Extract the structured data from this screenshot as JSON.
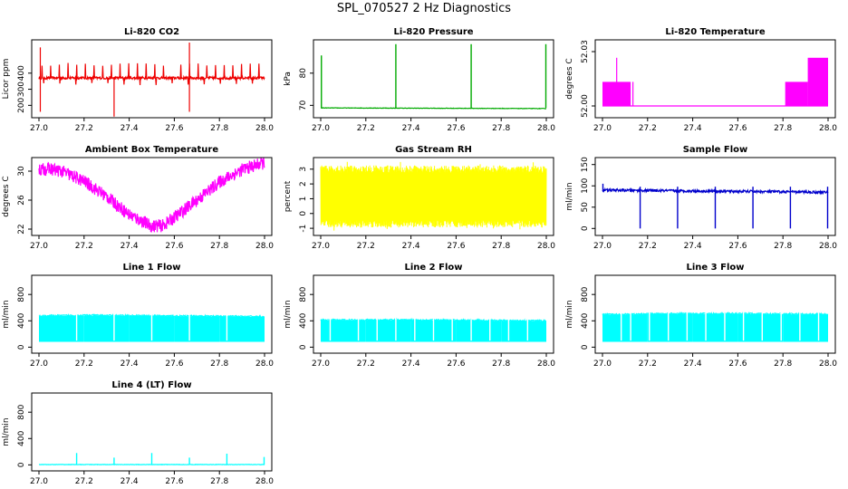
{
  "page_title": "SPL_070527  2 Hz Diagnostics",
  "chart_data": [
    {
      "type": "line",
      "title": "Li-820 CO2",
      "ylabel": "Licor ppm",
      "color": "#ee0000",
      "xlim": [
        27.0,
        28.0
      ],
      "ylim": [
        140,
        590
      ],
      "yticks": [
        "200",
        "300",
        "400"
      ],
      "xticks": [
        "27.0",
        "27.2",
        "27.4",
        "27.6",
        "27.8",
        "28.0"
      ],
      "series": [
        {
          "x": [
            27.0,
            28.0
          ],
          "values": [
            370,
            370
          ]
        }
      ],
      "pattern": {
        "kind": "noise_spikes",
        "base": 370,
        "noise": 8,
        "spike_hi": 465,
        "spike_lo": 325,
        "big": [
          {
            "x": 27.006,
            "lo": 160,
            "hi": 560
          },
          {
            "x": 27.333,
            "lo": 130,
            "hi": 370
          },
          {
            "x": 27.667,
            "lo": 160,
            "hi": 590
          }
        ]
      }
    },
    {
      "type": "line",
      "title": "Li-820 Pressure",
      "ylabel": "kPa",
      "color": "#00aa00",
      "xlim": [
        27.0,
        28.0
      ],
      "ylim": [
        67,
        89.5
      ],
      "yticks": [
        "70",
        "80"
      ],
      "xticks": [
        "27.0",
        "27.2",
        "27.4",
        "27.6",
        "27.8",
        "28.0"
      ],
      "series": [
        {
          "x": [
            27.0,
            28.0
          ],
          "values": [
            69.2,
            69.0
          ]
        }
      ],
      "pattern": {
        "kind": "flat_spikes",
        "base": 69.2,
        "spikes": [
          {
            "x": 27.003,
            "top": 85.5
          },
          {
            "x": 27.333,
            "top": 89
          },
          {
            "x": 27.667,
            "top": 89
          },
          {
            "x": 27.998,
            "top": 89
          }
        ]
      }
    },
    {
      "type": "line",
      "title": "Li-820 Temperature",
      "ylabel": "degrees C",
      "color": "#ff00ff",
      "xlim": [
        27.0,
        28.0
      ],
      "ylim": [
        51.995,
        52.035
      ],
      "yticks": [
        "52.00",
        "52.03"
      ],
      "xticks": [
        "27.0",
        "27.2",
        "27.4",
        "27.6",
        "27.8",
        "28.0"
      ],
      "series": [
        {
          "x": [
            27.0,
            28.0
          ],
          "values": [
            52.0,
            52.0
          ]
        }
      ],
      "pattern": {
        "kind": "steps",
        "base": 52.0,
        "blocks": [
          {
            "x0": 27.0,
            "x1": 27.125,
            "top": 52.0133
          },
          {
            "x0": 27.81,
            "x1": 27.91,
            "top": 52.0133
          },
          {
            "x0": 27.91,
            "x1": 28.0,
            "top": 52.0266
          }
        ],
        "lines": [
          {
            "x": 27.063,
            "top": 52.0266
          },
          {
            "x": 27.135,
            "top": 52.0133
          }
        ]
      }
    },
    {
      "type": "line",
      "title": "Ambient Box Temperature",
      "ylabel": "degrees C",
      "color": "#ff00ff",
      "xlim": [
        27.0,
        28.0
      ],
      "ylim": [
        21.5,
        31.5
      ],
      "yticks": [
        "22",
        "26",
        "30"
      ],
      "xticks": [
        "27.0",
        "27.2",
        "27.4",
        "27.6",
        "27.8",
        "28.0"
      ],
      "series": [
        {
          "x": [
            27.0,
            27.05,
            27.1,
            27.2,
            27.3,
            27.4,
            27.5,
            27.55,
            27.6,
            27.7,
            27.8,
            27.9,
            28.0
          ],
          "values": [
            30.2,
            30.3,
            30.0,
            28.6,
            26.5,
            24.0,
            22.4,
            22.5,
            23.6,
            26.0,
            28.5,
            30.2,
            31.2
          ]
        }
      ],
      "pattern": {
        "kind": "band",
        "width": 0.9
      }
    },
    {
      "type": "line",
      "title": "Gas Stream RH",
      "ylabel": "percent",
      "color": "#ffff00",
      "xlim": [
        27.0,
        28.0
      ],
      "ylim": [
        -1.3,
        3.6
      ],
      "yticks": [
        "-1",
        "0",
        "1",
        "2",
        "3"
      ],
      "xticks": [
        "27.0",
        "27.2",
        "27.4",
        "27.6",
        "27.8",
        "28.0"
      ],
      "series": [
        {
          "x": [
            27.0,
            28.0
          ],
          "values": [
            1.0,
            1.0
          ]
        }
      ],
      "pattern": {
        "kind": "dense_noise",
        "lo": -0.7,
        "hi": 3.0,
        "outer_lo": -1.1,
        "outer_hi": 3.3
      }
    },
    {
      "type": "line",
      "title": "Sample Flow",
      "ylabel": "ml/min",
      "color": "#0000cc",
      "xlim": [
        27.0,
        28.0
      ],
      "ylim": [
        -10,
        160
      ],
      "yticks": [
        "0",
        "50",
        "100",
        "150"
      ],
      "xticks": [
        "27.0",
        "27.2",
        "27.4",
        "27.6",
        "27.8",
        "28.0"
      ],
      "series": [
        {
          "x": [
            27.0,
            28.0
          ],
          "values": [
            90,
            85
          ]
        }
      ],
      "pattern": {
        "kind": "flat_dips",
        "noise": 3,
        "dips": [
          {
            "x": 27.167,
            "lo": 0
          },
          {
            "x": 27.333,
            "lo": 0
          },
          {
            "x": 27.5,
            "lo": 0
          },
          {
            "x": 27.667,
            "lo": 0
          },
          {
            "x": 27.833,
            "lo": 0
          },
          {
            "x": 27.998,
            "lo": 0
          }
        ],
        "start_top": 105
      }
    },
    {
      "type": "area",
      "title": "Line 1 Flow",
      "ylabel": "ml/min",
      "color": "#00ffff",
      "xlim": [
        27.0,
        28.0
      ],
      "ylim": [
        -50,
        1050
      ],
      "yticks": [
        "0",
        "400",
        "800"
      ],
      "xticks": [
        "27.0",
        "27.2",
        "27.4",
        "27.6",
        "27.8",
        "28.0"
      ],
      "series": [
        {
          "x": [
            27.0,
            28.0
          ],
          "values": [
            480,
            480
          ]
        }
      ],
      "pattern": {
        "kind": "block",
        "lo": 80,
        "top": [
          470,
          480,
          475,
          470,
          465,
          460
        ],
        "gaps": [
          27.167,
          27.333,
          27.5,
          27.667,
          27.833
        ]
      }
    },
    {
      "type": "area",
      "title": "Line 2 Flow",
      "ylabel": "ml/min",
      "color": "#00ffff",
      "xlim": [
        27.0,
        28.0
      ],
      "ylim": [
        -50,
        1050
      ],
      "yticks": [
        "0",
        "400",
        "800"
      ],
      "xticks": [
        "27.0",
        "27.2",
        "27.4",
        "27.6",
        "27.8",
        "28.0"
      ],
      "series": [
        {
          "x": [
            27.0,
            28.0
          ],
          "values": [
            410,
            400
          ]
        }
      ],
      "pattern": {
        "kind": "block",
        "lo": 80,
        "top": [
          405,
          410,
          410,
          405,
          400,
          395
        ],
        "gaps": [
          27.042,
          27.167,
          27.25,
          27.333,
          27.417,
          27.5,
          27.583,
          27.667,
          27.75,
          27.833,
          27.917
        ]
      }
    },
    {
      "type": "area",
      "title": "Line 3 Flow",
      "ylabel": "ml/min",
      "color": "#00ffff",
      "xlim": [
        27.0,
        28.0
      ],
      "ylim": [
        -50,
        1050
      ],
      "yticks": [
        "0",
        "400",
        "800"
      ],
      "xticks": [
        "27.0",
        "27.2",
        "27.4",
        "27.6",
        "27.8",
        "28.0"
      ],
      "series": [
        {
          "x": [
            27.0,
            28.0
          ],
          "values": [
            500,
            500
          ]
        }
      ],
      "pattern": {
        "kind": "block",
        "lo": 80,
        "top": [
          490,
          500,
          505,
          505,
          500,
          495
        ],
        "gaps": [
          27.083,
          27.125,
          27.208,
          27.292,
          27.375,
          27.458,
          27.542,
          27.625,
          27.708,
          27.792,
          27.875,
          27.958
        ]
      }
    },
    {
      "type": "line",
      "title": "Line 4 (LT) Flow",
      "ylabel": "ml/min",
      "color": "#00ffff",
      "xlim": [
        27.0,
        28.0
      ],
      "ylim": [
        -50,
        1050
      ],
      "yticks": [
        "0",
        "400",
        "800"
      ],
      "xticks": [
        "27.0",
        "27.2",
        "27.4",
        "27.6",
        "27.8",
        "28.0"
      ],
      "series": [
        {
          "x": [
            27.0,
            28.0
          ],
          "values": [
            5,
            5
          ]
        }
      ],
      "pattern": {
        "kind": "flat_spikes",
        "base": 5,
        "spikes": [
          {
            "x": 27.167,
            "top": 180
          },
          {
            "x": 27.333,
            "top": 110
          },
          {
            "x": 27.5,
            "top": 180
          },
          {
            "x": 27.667,
            "top": 110
          },
          {
            "x": 27.833,
            "top": 170
          },
          {
            "x": 27.998,
            "top": 120
          }
        ]
      }
    }
  ]
}
